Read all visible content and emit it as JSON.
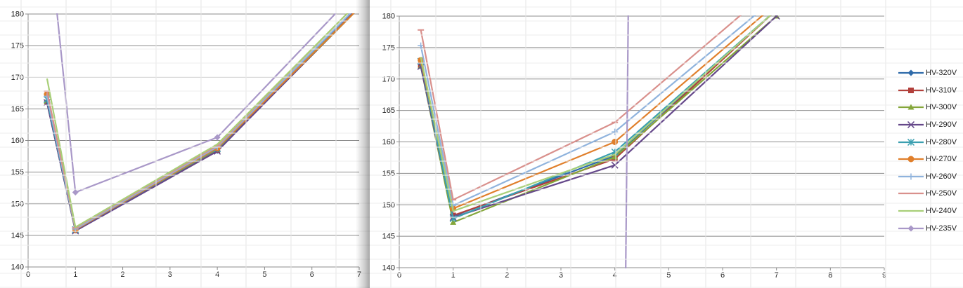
{
  "colors": {
    "HV-320V": "#2e6aa9",
    "HV-310V": "#b2403b",
    "HV-300V": "#84a63a",
    "HV-290V": "#65488a",
    "HV-280V": "#3b9fb0",
    "HV-270V": "#e07f2b",
    "HV-260V": "#8fb3dd",
    "HV-250V": "#d9908c",
    "HV-240V": "#a8cf78",
    "HV-235V": "#a998c8"
  },
  "markers": {
    "HV-320V": "diamond",
    "HV-310V": "square",
    "HV-300V": "triangle",
    "HV-290V": "x",
    "HV-280V": "asterisk",
    "HV-270V": "circle",
    "HV-260V": "plus",
    "HV-250V": "dash",
    "HV-240V": "none",
    "HV-235V": "diamond"
  },
  "chart_data": [
    {
      "type": "line",
      "title": "",
      "xlabel": "",
      "ylabel": "",
      "xlim": [
        0,
        7
      ],
      "ylim": [
        140,
        180
      ],
      "xticks": [
        "0",
        "1",
        "2",
        "3",
        "4",
        "5",
        "6",
        "7"
      ],
      "yticks": [
        "140",
        "145",
        "150",
        "155",
        "160",
        "165",
        "170",
        "175",
        "180"
      ],
      "grid": "horizontal",
      "legend": "none",
      "series": [
        {
          "name": "HV-320V",
          "x": [
            0.4,
            1,
            4,
            7
          ],
          "y": [
            166.0,
            145.8,
            158.4,
            181.0
          ]
        },
        {
          "name": "HV-310V",
          "x": [
            0.4,
            1,
            4,
            7
          ],
          "y": [
            166.0,
            145.8,
            158.5,
            181.0
          ]
        },
        {
          "name": "HV-300V",
          "x": [
            0.4,
            1,
            4,
            7
          ],
          "y": [
            166.2,
            145.9,
            158.6,
            181.0
          ]
        },
        {
          "name": "HV-290V",
          "x": [
            0.4,
            1,
            4,
            7
          ],
          "y": [
            166.0,
            145.7,
            158.3,
            181.2
          ]
        },
        {
          "name": "HV-280V",
          "x": [
            0.4,
            1,
            4,
            7
          ],
          "y": [
            166.5,
            145.9,
            158.7,
            181.5
          ]
        },
        {
          "name": "HV-270V",
          "x": [
            0.4,
            1,
            4,
            7
          ],
          "y": [
            167.3,
            145.9,
            158.8,
            181.0
          ]
        },
        {
          "name": "HV-260V",
          "x": [
            0.4,
            1,
            4,
            7
          ],
          "y": [
            167.0,
            146.0,
            159.0,
            181.5
          ]
        },
        {
          "name": "HV-250V",
          "x": [
            0.4,
            1,
            4,
            7
          ],
          "y": [
            167.8,
            146.2,
            159.2,
            182.0
          ]
        },
        {
          "name": "HV-240V",
          "x": [
            0.4,
            1,
            4,
            7
          ],
          "y": [
            169.8,
            146.3,
            159.4,
            182.0
          ]
        },
        {
          "name": "HV-235V",
          "x": [
            0.6,
            1,
            4,
            7
          ],
          "y": [
            181.0,
            151.8,
            160.5,
            184.0
          ]
        }
      ]
    },
    {
      "type": "line",
      "title": "",
      "xlabel": "",
      "ylabel": "",
      "xlim": [
        0,
        9
      ],
      "ylim": [
        140,
        180
      ],
      "xticks": [
        "0",
        "1",
        "2",
        "3",
        "4",
        "5",
        "6",
        "7",
        "8",
        "9"
      ],
      "yticks": [
        "140",
        "145",
        "150",
        "155",
        "160",
        "165",
        "170",
        "175",
        "180"
      ],
      "grid": "horizontal",
      "legend": "right",
      "series": [
        {
          "name": "HV-320V",
          "x": [
            0.4,
            1,
            4,
            7
          ],
          "y": [
            172.5,
            148.2,
            157.8,
            181.0
          ]
        },
        {
          "name": "HV-310V",
          "x": [
            0.4,
            1,
            4,
            7
          ],
          "y": [
            172.2,
            148.3,
            157.3,
            181.0
          ]
        },
        {
          "name": "HV-300V",
          "x": [
            0.4,
            1,
            4,
            7
          ],
          "y": [
            172.0,
            147.2,
            157.6,
            180.0
          ]
        },
        {
          "name": "HV-290V",
          "x": [
            0.4,
            1,
            4,
            7
          ],
          "y": [
            172.0,
            148.0,
            156.3,
            180.0
          ]
        },
        {
          "name": "HV-280V",
          "x": [
            0.4,
            1,
            4,
            7
          ],
          "y": [
            172.8,
            147.8,
            158.4,
            181.0
          ]
        },
        {
          "name": "HV-270V",
          "x": [
            0.4,
            1,
            4,
            7
          ],
          "y": [
            173.0,
            149.4,
            160.0,
            182.0
          ]
        },
        {
          "name": "HV-260V",
          "x": [
            0.4,
            1,
            4,
            7
          ],
          "y": [
            175.3,
            149.9,
            161.6,
            183.0
          ]
        },
        {
          "name": "HV-250V",
          "x": [
            0.4,
            1,
            4,
            7
          ],
          "y": [
            177.8,
            150.8,
            163.1,
            185.0
          ]
        },
        {
          "name": "HV-240V",
          "x": [
            0.4,
            1,
            4,
            7
          ],
          "y": [
            173.5,
            149.0,
            158.0,
            181.0
          ]
        },
        {
          "name": "HV-235V",
          "x": [
            4.2,
            4.25
          ],
          "y": [
            138.0,
            181.0
          ]
        }
      ]
    }
  ]
}
